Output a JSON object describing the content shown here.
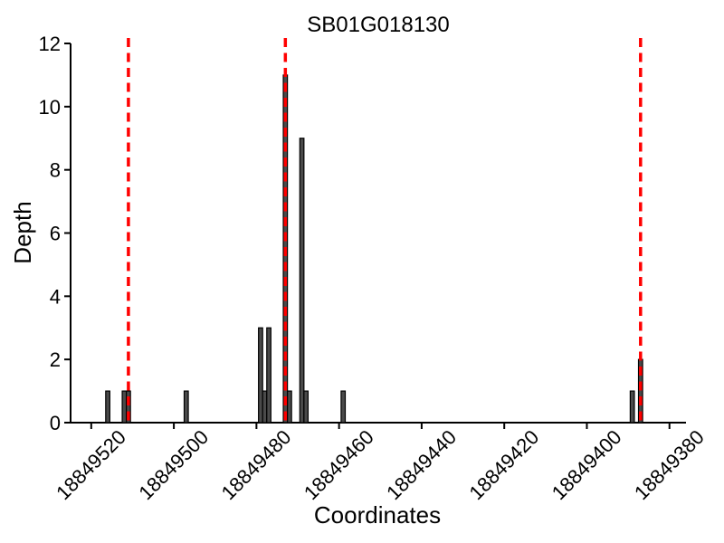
{
  "chart_data": {
    "type": "bar",
    "title": "SB01G018130",
    "xlabel": "Coordinates",
    "ylabel": "Depth",
    "x_axis_reversed": true,
    "xlim": [
      18849525,
      18849376
    ],
    "ylim": [
      0,
      12
    ],
    "x_tick_values": [
      18849520,
      18849500,
      18849480,
      18849460,
      18849440,
      18849420,
      18849400,
      18849380
    ],
    "x_tick_labels": [
      "18849520",
      "18849500",
      "18849480",
      "18849460",
      "18849440",
      "18849420",
      "18849400",
      "18849380"
    ],
    "y_tick_values": [
      0,
      2,
      4,
      6,
      8,
      10,
      12
    ],
    "y_tick_labels": [
      "0",
      "2",
      "4",
      "6",
      "8",
      "10",
      "12"
    ],
    "grid": false,
    "legend": null,
    "bar_width": 1,
    "bars": [
      {
        "x": 18849516,
        "depth": 1
      },
      {
        "x": 18849512,
        "depth": 1
      },
      {
        "x": 18849511,
        "depth": 1
      },
      {
        "x": 18849497,
        "depth": 1
      },
      {
        "x": 18849479,
        "depth": 3
      },
      {
        "x": 18849478,
        "depth": 1
      },
      {
        "x": 18849477,
        "depth": 3
      },
      {
        "x": 18849473,
        "depth": 11
      },
      {
        "x": 18849472,
        "depth": 1
      },
      {
        "x": 18849469,
        "depth": 9
      },
      {
        "x": 18849468,
        "depth": 1
      },
      {
        "x": 18849459,
        "depth": 1
      },
      {
        "x": 18849389,
        "depth": 1
      },
      {
        "x": 18849387,
        "depth": 2
      }
    ],
    "vlines": [
      {
        "x": 18849511,
        "style": "dashed"
      },
      {
        "x": 18849473,
        "style": "dashed"
      },
      {
        "x": 18849387,
        "style": "dashed"
      }
    ],
    "colors": {
      "bar_fill": "#4a4a4a",
      "bar_edge": "#000000",
      "vline": "#ff0000",
      "axis": "#000000",
      "text": "#000000",
      "background": "#ffffff"
    }
  }
}
